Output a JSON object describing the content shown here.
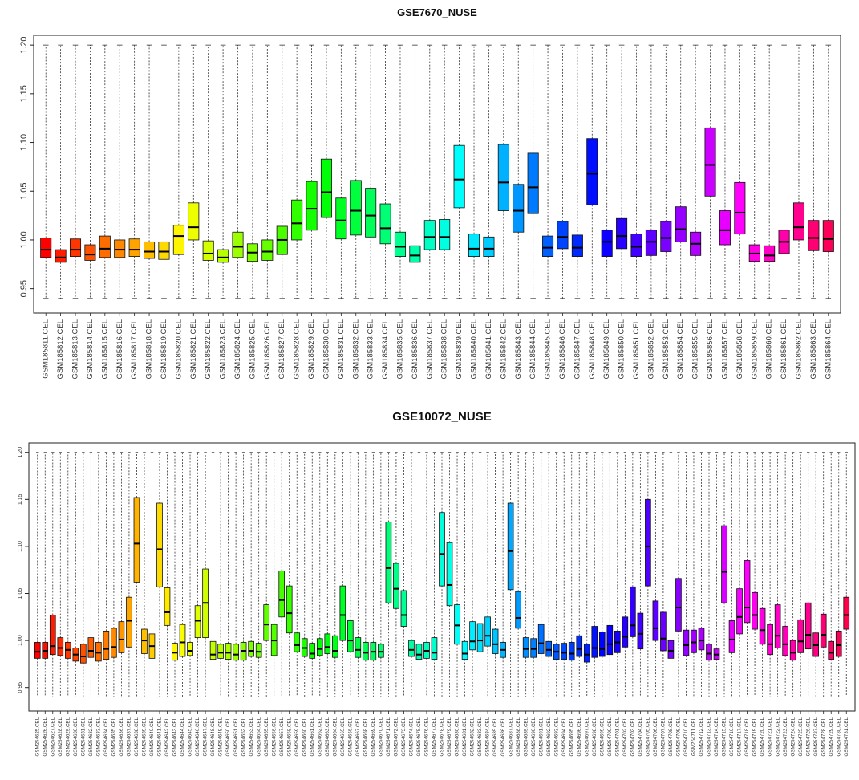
{
  "chart_data": [
    {
      "type": "boxplot",
      "title": "GSE7670_NUSE",
      "ylim": [
        0.925,
        1.21
      ],
      "yticks": [
        "0.95",
        "1.00",
        "1.05",
        "1.10",
        "1.15",
        "1.20"
      ],
      "ytick_values": [
        0.95,
        1.0,
        1.05,
        1.1,
        1.15,
        1.2
      ],
      "whisker_low": 0.94,
      "whisker_high": 1.2,
      "categories": [
        "GSM185811.CEL",
        "GSM185812.CEL",
        "GSM185813.CEL",
        "GSM185814.CEL",
        "GSM185815.CEL",
        "GSM185816.CEL",
        "GSM185817.CEL",
        "GSM185818.CEL",
        "GSM185819.CEL",
        "GSM185820.CEL",
        "GSM185821.CEL",
        "GSM185822.CEL",
        "GSM185823.CEL",
        "GSM185824.CEL",
        "GSM185825.CEL",
        "GSM185826.CEL",
        "GSM185827.CEL",
        "GSM185828.CEL",
        "GSM185829.CEL",
        "GSM185830.CEL",
        "GSM185831.CEL",
        "GSM185832.CEL",
        "GSM185833.CEL",
        "GSM185834.CEL",
        "GSM185835.CEL",
        "GSM185836.CEL",
        "GSM185837.CEL",
        "GSM185838.CEL",
        "GSM185839.CEL",
        "GSM185840.CEL",
        "GSM185841.CEL",
        "GSM185842.CEL",
        "GSM185843.CEL",
        "GSM185844.CEL",
        "GSM185845.CEL",
        "GSM185846.CEL",
        "GSM185847.CEL",
        "GSM185848.CEL",
        "GSM185849.CEL",
        "GSM185850.CEL",
        "GSM185851.CEL",
        "GSM185852.CEL",
        "GSM185853.CEL",
        "GSM185854.CEL",
        "GSM185855.CEL",
        "GSM185856.CEL",
        "GSM185857.CEL",
        "GSM185858.CEL",
        "GSM185859.CEL",
        "GSM185860.CEL",
        "GSM185861.CEL",
        "GSM185862.CEL",
        "GSM185863.CEL",
        "GSM185864.CEL"
      ],
      "q1": [
        0.982,
        0.977,
        0.983,
        0.979,
        0.982,
        0.982,
        0.983,
        0.981,
        0.98,
        0.985,
        1.0,
        0.979,
        0.977,
        0.982,
        0.978,
        0.979,
        0.985,
        1.0,
        1.01,
        1.023,
        1.001,
        1.005,
        1.003,
        0.996,
        0.983,
        0.977,
        0.99,
        0.99,
        1.033,
        0.983,
        0.983,
        1.03,
        1.008,
        1.027,
        0.983,
        0.991,
        0.983,
        1.036,
        0.983,
        0.991,
        0.983,
        0.984,
        0.988,
        0.998,
        0.984,
        1.045,
        0.995,
        1.006,
        0.978,
        0.978,
        0.986,
        1.0,
        0.989,
        0.988
      ],
      "median": [
        0.99,
        0.982,
        0.99,
        0.985,
        0.991,
        0.99,
        0.99,
        0.988,
        0.988,
        1.004,
        1.013,
        0.986,
        0.982,
        0.993,
        0.987,
        0.988,
        1.0,
        1.017,
        1.032,
        1.049,
        1.02,
        1.03,
        1.025,
        1.012,
        0.993,
        0.984,
        1.003,
        1.003,
        1.062,
        0.991,
        0.991,
        1.059,
        1.03,
        1.054,
        0.992,
        1.003,
        0.992,
        1.068,
        0.998,
        1.004,
        0.993,
        0.998,
        1.002,
        1.011,
        0.996,
        1.077,
        1.01,
        1.028,
        0.986,
        0.984,
        0.998,
        1.013,
        1.002,
        1.001
      ],
      "q3": [
        1.002,
        0.99,
        1.001,
        0.995,
        1.004,
        1.0,
        1.001,
        0.998,
        0.998,
        1.015,
        1.038,
        0.999,
        0.99,
        1.008,
        0.996,
        1.0,
        1.014,
        1.041,
        1.06,
        1.083,
        1.043,
        1.061,
        1.053,
        1.037,
        1.008,
        0.994,
        1.02,
        1.021,
        1.097,
        1.006,
        1.003,
        1.098,
        1.057,
        1.089,
        1.004,
        1.019,
        1.005,
        1.104,
        1.01,
        1.022,
        1.006,
        1.01,
        1.019,
        1.034,
        1.008,
        1.115,
        1.03,
        1.059,
        0.995,
        0.994,
        1.01,
        1.038,
        1.02,
        1.02
      ]
    },
    {
      "type": "boxplot",
      "title": "GSE10072_NUSE",
      "ylim": [
        0.925,
        1.21
      ],
      "yticks": [
        "0.95",
        "1.00",
        "1.05",
        "1.10",
        "1.15",
        "1.20"
      ],
      "ytick_values": [
        0.95,
        1.0,
        1.05,
        1.1,
        1.15,
        1.2
      ],
      "whisker_low": 0.94,
      "whisker_high": 1.2,
      "categories": [
        "GSM254625.CEL",
        "GSM254626.CEL",
        "GSM254627.CEL",
        "GSM254628.CEL",
        "GSM254629.CEL",
        "GSM254630.CEL",
        "GSM254631.CEL",
        "GSM254632.CEL",
        "GSM254633.CEL",
        "GSM254634.CEL",
        "GSM254635.CEL",
        "GSM254636.CEL",
        "GSM254637.CEL",
        "GSM254638.CEL",
        "GSM254639.CEL",
        "GSM254640.CEL",
        "GSM254641.CEL",
        "GSM254642.CEL",
        "GSM254643.CEL",
        "GSM254644.CEL",
        "GSM254645.CEL",
        "GSM254646.CEL",
        "GSM254647.CEL",
        "GSM254648.CEL",
        "GSM254649.CEL",
        "GSM254650.CEL",
        "GSM254651.CEL",
        "GSM254652.CEL",
        "GSM254653.CEL",
        "GSM254654.CEL",
        "GSM254655.CEL",
        "GSM254656.CEL",
        "GSM254657.CEL",
        "GSM254658.CEL",
        "GSM254659.CEL",
        "GSM254660.CEL",
        "GSM254661.CEL",
        "GSM254662.CEL",
        "GSM254663.CEL",
        "GSM254664.CEL",
        "GSM254665.CEL",
        "GSM254666.CEL",
        "GSM254667.CEL",
        "GSM254668.CEL",
        "GSM254669.CEL",
        "GSM254670.CEL",
        "GSM254671.CEL",
        "GSM254672.CEL",
        "GSM254673.CEL",
        "GSM254674.CEL",
        "GSM254675.CEL",
        "GSM254676.CEL",
        "GSM254677.CEL",
        "GSM254678.CEL",
        "GSM254679.CEL",
        "GSM254680.CEL",
        "GSM254681.CEL",
        "GSM254682.CEL",
        "GSM254683.CEL",
        "GSM254684.CEL",
        "GSM254685.CEL",
        "GSM254686.CEL",
        "GSM254687.CEL",
        "GSM254688.CEL",
        "GSM254689.CEL",
        "GSM254690.CEL",
        "GSM254691.CEL",
        "GSM254692.CEL",
        "GSM254693.CEL",
        "GSM254694.CEL",
        "GSM254695.CEL",
        "GSM254696.CEL",
        "GSM254697.CEL",
        "GSM254698.CEL",
        "GSM254699.CEL",
        "GSM254700.CEL",
        "GSM254701.CEL",
        "GSM254702.CEL",
        "GSM254703.CEL",
        "GSM254704.CEL",
        "GSM254705.CEL",
        "GSM254706.CEL",
        "GSM254707.CEL",
        "GSM254708.CEL",
        "GSM254709.CEL",
        "GSM254710.CEL",
        "GSM254711.CEL",
        "GSM254712.CEL",
        "GSM254713.CEL",
        "GSM254714.CEL",
        "GSM254715.CEL",
        "GSM254716.CEL",
        "GSM254717.CEL",
        "GSM254718.CEL",
        "GSM254719.CEL",
        "GSM254720.CEL",
        "GSM254721.CEL",
        "GSM254722.CEL",
        "GSM254723.CEL",
        "GSM254724.CEL",
        "GSM254725.CEL",
        "GSM254726.CEL",
        "GSM254727.CEL",
        "GSM254728.CEL",
        "GSM254729.CEL",
        "GSM254730.CEL",
        "GSM254731.CEL"
      ],
      "q1": [
        0.981,
        0.981,
        0.985,
        0.984,
        0.981,
        0.978,
        0.976,
        0.982,
        0.978,
        0.98,
        0.982,
        0.987,
        0.993,
        1.062,
        0.986,
        0.981,
        1.057,
        1.016,
        0.979,
        0.983,
        0.984,
        1.003,
        1.003,
        0.98,
        0.981,
        0.98,
        0.979,
        0.979,
        0.983,
        0.982,
        1.0,
        0.984,
        1.025,
        1.008,
        0.988,
        0.983,
        0.981,
        0.984,
        0.986,
        0.982,
        1.0,
        0.988,
        0.982,
        0.979,
        0.979,
        0.982,
        1.04,
        1.034,
        1.015,
        0.983,
        0.98,
        0.981,
        0.98,
        1.058,
        1.037,
        0.996,
        0.98,
        0.99,
        0.988,
        0.994,
        0.986,
        0.982,
        1.054,
        1.013,
        0.982,
        0.982,
        0.986,
        0.983,
        0.98,
        0.98,
        0.979,
        0.983,
        0.977,
        0.982,
        0.983,
        0.985,
        0.987,
        0.993,
        1.004,
        0.991,
        1.058,
        1.0,
        0.989,
        0.981,
        1.01,
        0.984,
        0.987,
        0.99,
        0.979,
        0.98,
        1.04,
        0.987,
        1.007,
        1.019,
        1.012,
        0.996,
        0.985,
        0.992,
        0.984,
        0.979,
        0.987,
        0.991,
        0.983,
        0.993,
        0.98,
        0.983,
        1.012
      ],
      "median": [
        0.988,
        0.989,
        0.994,
        0.992,
        0.99,
        0.985,
        0.983,
        0.989,
        0.987,
        0.991,
        0.993,
        1.001,
        1.021,
        1.103,
        1.0,
        0.994,
        1.097,
        1.03,
        0.987,
        0.998,
        0.989,
        1.021,
        1.04,
        0.985,
        0.987,
        0.987,
        0.985,
        0.989,
        0.989,
        0.988,
        1.017,
        1.0,
        1.043,
        1.029,
        0.995,
        0.992,
        0.986,
        0.991,
        0.993,
        0.989,
        1.027,
        1.0,
        0.99,
        0.987,
        0.988,
        0.988,
        1.077,
        1.055,
        1.027,
        0.99,
        0.985,
        0.989,
        0.987,
        1.092,
        1.059,
        1.016,
        0.986,
        0.999,
        1.0,
        1.005,
        0.996,
        0.99,
        1.095,
        1.024,
        0.991,
        0.991,
        0.997,
        0.99,
        0.988,
        0.987,
        0.986,
        0.991,
        0.985,
        0.992,
        0.991,
        0.996,
        0.998,
        1.004,
        1.016,
        1.007,
        1.1,
        1.013,
        1.002,
        0.989,
        1.035,
        0.995,
        0.998,
        1.0,
        0.986,
        0.985,
        1.073,
        1.001,
        1.025,
        1.035,
        1.027,
        1.011,
        0.996,
        1.005,
        0.996,
        0.987,
        0.999,
        1.006,
        0.995,
        1.006,
        0.987,
        0.995,
        1.027
      ],
      "q3": [
        0.998,
        0.998,
        1.027,
        1.003,
        0.998,
        0.992,
        0.996,
        1.003,
        0.998,
        1.01,
        1.013,
        1.02,
        1.046,
        1.152,
        1.012,
        1.007,
        1.146,
        1.056,
        0.997,
        1.017,
        0.998,
        1.037,
        1.076,
        0.999,
        0.996,
        0.997,
        0.996,
        0.998,
        0.999,
        0.997,
        1.038,
        1.017,
        1.074,
        1.058,
        1.008,
        1.002,
        0.997,
        1.002,
        1.007,
        1.005,
        1.058,
        1.021,
        1.003,
        0.998,
        0.998,
        0.996,
        1.126,
        1.082,
        1.053,
        1.0,
        0.996,
        0.998,
        1.003,
        1.136,
        1.104,
        1.038,
        0.999,
        1.02,
        1.018,
        1.025,
        1.012,
        0.998,
        1.146,
        1.052,
        1.003,
        1.002,
        1.017,
        0.999,
        0.996,
        0.997,
        0.998,
        1.005,
        0.996,
        1.015,
        1.009,
        1.016,
        1.01,
        1.025,
        1.057,
        1.029,
        1.15,
        1.042,
        1.03,
        1.0,
        1.066,
        1.011,
        1.011,
        1.013,
        0.996,
        0.991,
        1.122,
        1.021,
        1.055,
        1.085,
        1.051,
        1.034,
        1.017,
        1.038,
        1.015,
        1.0,
        1.022,
        1.04,
        1.008,
        1.028,
        0.999,
        1.01,
        1.046
      ]
    }
  ]
}
